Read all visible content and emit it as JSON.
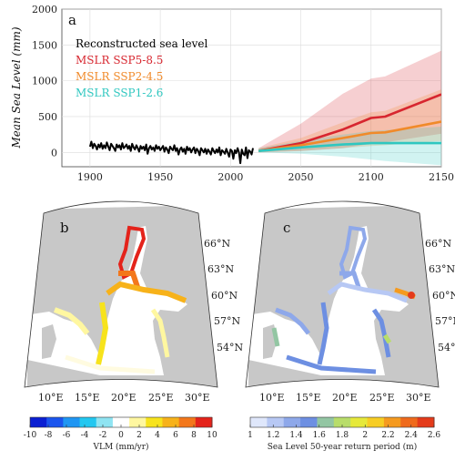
{
  "panel_a": {
    "letter": "a",
    "chart_data": {
      "type": "line",
      "ylabel": "Mean Sea Level (mm)",
      "xlim": [
        1880,
        2150
      ],
      "ylim": [
        -200,
        2000
      ],
      "x_ticks": [
        "1900",
        "1950",
        "2000",
        "2050",
        "2100",
        "2150"
      ],
      "y_ticks": [
        "0",
        "500",
        "1000",
        "1500",
        "2000"
      ],
      "grid": true,
      "legend_placement": "top-left",
      "series": [
        {
          "name": "Reconstructed sea level",
          "color": "#000000",
          "x": [
            1900,
            1901,
            1902,
            1903,
            1904,
            1905,
            1906,
            1907,
            1908,
            1909,
            1910,
            1911,
            1912,
            1913,
            1914,
            1915,
            1916,
            1917,
            1918,
            1919,
            1920,
            1921,
            1922,
            1923,
            1924,
            1925,
            1926,
            1927,
            1928,
            1929,
            1930,
            1931,
            1932,
            1933,
            1934,
            1935,
            1936,
            1937,
            1938,
            1939,
            1940,
            1941,
            1942,
            1943,
            1944,
            1945,
            1946,
            1947,
            1948,
            1949,
            1950,
            1951,
            1952,
            1953,
            1954,
            1955,
            1956,
            1957,
            1958,
            1959,
            1960,
            1961,
            1962,
            1963,
            1964,
            1965,
            1966,
            1967,
            1968,
            1969,
            1970,
            1971,
            1972,
            1973,
            1974,
            1975,
            1976,
            1977,
            1978,
            1979,
            1980,
            1981,
            1982,
            1983,
            1984,
            1985,
            1986,
            1987,
            1988,
            1989,
            1990,
            1991,
            1992,
            1993,
            1994,
            1995,
            1996,
            1997,
            1998,
            1999,
            2000,
            2001,
            2002,
            2003,
            2004,
            2005,
            2006,
            2007,
            2008,
            2009,
            2010,
            2011,
            2012,
            2013,
            2014,
            2015,
            2016
          ],
          "values": [
            80,
            150,
            60,
            120,
            90,
            40,
            110,
            70,
            130,
            50,
            100,
            60,
            140,
            80,
            30,
            120,
            90,
            60,
            20,
            110,
            70,
            100,
            40,
            130,
            60,
            80,
            110,
            50,
            90,
            20,
            120,
            70,
            40,
            100,
            60,
            10,
            90,
            50,
            80,
            30,
            110,
            -20,
            60,
            90,
            40,
            70,
            20,
            100,
            50,
            80,
            30,
            60,
            90,
            10,
            70,
            40,
            -10,
            80,
            50,
            30,
            100,
            20,
            60,
            -30,
            40,
            70,
            10,
            50,
            -20,
            80,
            30,
            60,
            0,
            40,
            70,
            -10,
            50,
            20,
            -40,
            60,
            30,
            0,
            50,
            -20,
            40,
            10,
            -30,
            60,
            20,
            -10,
            40,
            0,
            70,
            -40,
            30,
            10,
            -20,
            50,
            0,
            -60,
            40,
            20,
            -90,
            30,
            -10,
            60,
            0,
            -150,
            40,
            -20,
            -40,
            70,
            -80,
            30,
            10,
            -30,
            60
          ]
        },
        {
          "name": "MSLR SSP5-8.5",
          "color": "#d7262f",
          "x": [
            2020,
            2050,
            2080,
            2100,
            2110,
            2150
          ],
          "values": [
            20,
            130,
            320,
            480,
            500,
            810
          ],
          "band_low": [
            0,
            20,
            60,
            120,
            140,
            260
          ],
          "band_high": [
            60,
            400,
            820,
            1030,
            1060,
            1420
          ]
        },
        {
          "name": "MSLR SSP2-4.5",
          "color": "#f08a2a",
          "x": [
            2020,
            2050,
            2080,
            2100,
            2110,
            2150
          ],
          "values": [
            20,
            100,
            200,
            270,
            280,
            430
          ],
          "band_low": [
            0,
            20,
            60,
            90,
            100,
            160
          ],
          "band_high": [
            60,
            200,
            420,
            560,
            580,
            880
          ]
        },
        {
          "name": "MSLR SSP1-2.6",
          "color": "#2fc7c0",
          "x": [
            2020,
            2050,
            2080,
            2100,
            2110,
            2150
          ],
          "values": [
            20,
            70,
            110,
            130,
            130,
            130
          ],
          "band_low": [
            0,
            -20,
            -60,
            -100,
            -120,
            -180
          ],
          "band_high": [
            60,
            160,
            250,
            300,
            310,
            360
          ]
        }
      ]
    }
  },
  "panel_b": {
    "letter": "b",
    "lat_labels": [
      "66°N",
      "63°N",
      "60°N",
      "57°N",
      "54°N"
    ],
    "lon_labels": [
      "10°E",
      "15°E",
      "20°E",
      "25°E",
      "30°E"
    ],
    "colorbar": {
      "label": "VLM (mm/yr)",
      "ticks": [
        "-10",
        "-8",
        "-6",
        "-4",
        "-2",
        "0",
        "2",
        "4",
        "6",
        "8",
        "10"
      ],
      "colors": [
        "#0a1fd2",
        "#1b55ee",
        "#1f96f3",
        "#22c7f0",
        "#8fe4f2",
        "#ffffff",
        "#fff7a0",
        "#f7e31c",
        "#f7b21a",
        "#f3771b",
        "#e4231b"
      ]
    }
  },
  "panel_c": {
    "letter": "c",
    "lat_labels": [
      "66°N",
      "63°N",
      "60°N",
      "57°N",
      "54°N"
    ],
    "lon_labels": [
      "10°E",
      "15°E",
      "20°E",
      "25°E",
      "30°E"
    ],
    "colorbar": {
      "label": "Sea Level 50-year return period (m)",
      "ticks": [
        "1",
        "1.2",
        "1.4",
        "1.6",
        "1.8",
        "2",
        "2.2",
        "2.4",
        "2.6"
      ],
      "colors": [
        "#dfe7fb",
        "#b7c8f4",
        "#8ea8ea",
        "#6d8fe2",
        "#93c6a3",
        "#b8dd6a",
        "#e6e93a",
        "#f7cd24",
        "#f59a1f",
        "#ef6a1c",
        "#e43b1b"
      ]
    }
  }
}
